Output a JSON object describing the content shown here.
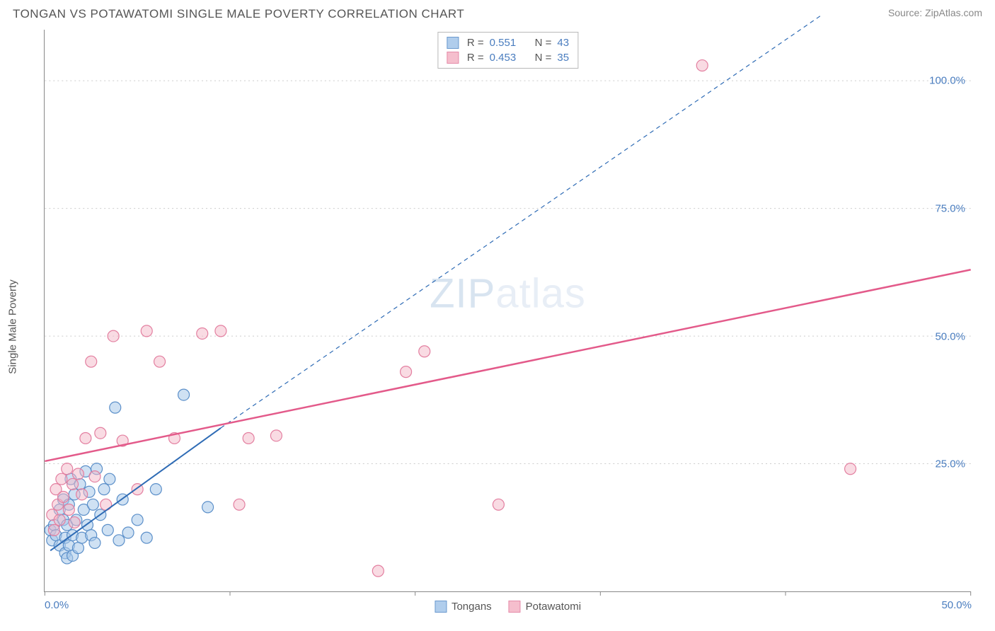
{
  "header": {
    "title": "TONGAN VS POTAWATOMI SINGLE MALE POVERTY CORRELATION CHART",
    "source": "Source: ZipAtlas.com"
  },
  "chart": {
    "type": "scatter",
    "ylabel": "Single Male Poverty",
    "watermark_zip": "ZIP",
    "watermark_atlas": "atlas",
    "background_color": "#ffffff",
    "grid_color": "#cccccc",
    "axis_color": "#888888",
    "tick_label_color": "#4a7dbf",
    "xlim": [
      0,
      50
    ],
    "ylim": [
      0,
      110
    ],
    "x_ticks": [
      {
        "v": 0,
        "label": "0.0%"
      },
      {
        "v": 10,
        "label": ""
      },
      {
        "v": 20,
        "label": ""
      },
      {
        "v": 30,
        "label": ""
      },
      {
        "v": 40,
        "label": ""
      },
      {
        "v": 50,
        "label": "50.0%"
      }
    ],
    "y_ticks": [
      {
        "v": 25,
        "label": "25.0%"
      },
      {
        "v": 50,
        "label": "50.0%"
      },
      {
        "v": 75,
        "label": "75.0%"
      },
      {
        "v": 100,
        "label": "100.0%"
      }
    ],
    "series": [
      {
        "name": "Tongans",
        "short": "tongans",
        "fill": "#a8c8ea",
        "fill_opacity": 0.55,
        "stroke": "#5b8fc9",
        "marker_r": 8,
        "r_label": "R  =",
        "r_value": "0.551",
        "n_label": "N  =",
        "n_value": "43",
        "trend": {
          "x1": 0.3,
          "y1": 8,
          "x2": 9.5,
          "y2": 32,
          "dashed": false,
          "extend_dashed_to": {
            "x": 42,
            "y": 113
          },
          "color": "#2e6bb5",
          "width": 2
        },
        "points": [
          [
            0.3,
            12
          ],
          [
            0.4,
            10
          ],
          [
            0.5,
            13
          ],
          [
            0.6,
            11
          ],
          [
            0.8,
            16
          ],
          [
            0.8,
            9
          ],
          [
            1.0,
            14
          ],
          [
            1.0,
            18
          ],
          [
            1.1,
            7.5
          ],
          [
            1.1,
            10.5
          ],
          [
            1.2,
            13
          ],
          [
            1.2,
            6.5
          ],
          [
            1.3,
            17
          ],
          [
            1.3,
            9
          ],
          [
            1.4,
            22
          ],
          [
            1.5,
            11
          ],
          [
            1.5,
            7
          ],
          [
            1.6,
            19
          ],
          [
            1.7,
            14
          ],
          [
            1.8,
            8.5
          ],
          [
            1.9,
            21
          ],
          [
            2.0,
            10.5
          ],
          [
            2.1,
            16
          ],
          [
            2.2,
            23.5
          ],
          [
            2.3,
            13
          ],
          [
            2.4,
            19.5
          ],
          [
            2.5,
            11
          ],
          [
            2.6,
            17
          ],
          [
            2.7,
            9.5
          ],
          [
            2.8,
            24
          ],
          [
            3.0,
            15
          ],
          [
            3.2,
            20
          ],
          [
            3.4,
            12
          ],
          [
            3.5,
            22
          ],
          [
            3.8,
            36
          ],
          [
            4.0,
            10
          ],
          [
            4.2,
            18
          ],
          [
            4.5,
            11.5
          ],
          [
            5.0,
            14
          ],
          [
            5.5,
            10.5
          ],
          [
            6.0,
            20
          ],
          [
            7.5,
            38.5
          ],
          [
            8.8,
            16.5
          ]
        ]
      },
      {
        "name": "Potawatomi",
        "short": "potawatomi",
        "fill": "#f4b8c8",
        "fill_opacity": 0.5,
        "stroke": "#e37fa0",
        "marker_r": 8,
        "r_label": "R  =",
        "r_value": "0.453",
        "n_label": "N  =",
        "n_value": "35",
        "trend": {
          "x1": 0,
          "y1": 25.5,
          "x2": 50,
          "y2": 63,
          "dashed": false,
          "color": "#e35a8a",
          "width": 2.5
        },
        "points": [
          [
            0.4,
            15
          ],
          [
            0.5,
            12
          ],
          [
            0.6,
            20
          ],
          [
            0.7,
            17
          ],
          [
            0.8,
            14
          ],
          [
            0.9,
            22
          ],
          [
            1.0,
            18.5
          ],
          [
            1.2,
            24
          ],
          [
            1.3,
            16
          ],
          [
            1.5,
            21
          ],
          [
            1.6,
            13.5
          ],
          [
            1.8,
            23
          ],
          [
            2.0,
            19
          ],
          [
            2.2,
            30
          ],
          [
            2.5,
            45
          ],
          [
            2.7,
            22.5
          ],
          [
            3.0,
            31
          ],
          [
            3.3,
            17
          ],
          [
            3.7,
            50
          ],
          [
            4.2,
            29.5
          ],
          [
            5.0,
            20
          ],
          [
            5.5,
            51
          ],
          [
            6.2,
            45
          ],
          [
            7.0,
            30
          ],
          [
            8.5,
            50.5
          ],
          [
            9.5,
            51
          ],
          [
            10.5,
            17
          ],
          [
            11.0,
            30
          ],
          [
            12.5,
            30.5
          ],
          [
            18.0,
            4
          ],
          [
            19.5,
            43
          ],
          [
            20.5,
            47
          ],
          [
            24.5,
            17
          ],
          [
            35.5,
            103
          ],
          [
            43.5,
            24
          ]
        ]
      }
    ],
    "bottom_legend": [
      {
        "label": "Tongans",
        "fill": "#a8c8ea",
        "stroke": "#5b8fc9"
      },
      {
        "label": "Potawatomi",
        "fill": "#f4b8c8",
        "stroke": "#e37fa0"
      }
    ]
  }
}
